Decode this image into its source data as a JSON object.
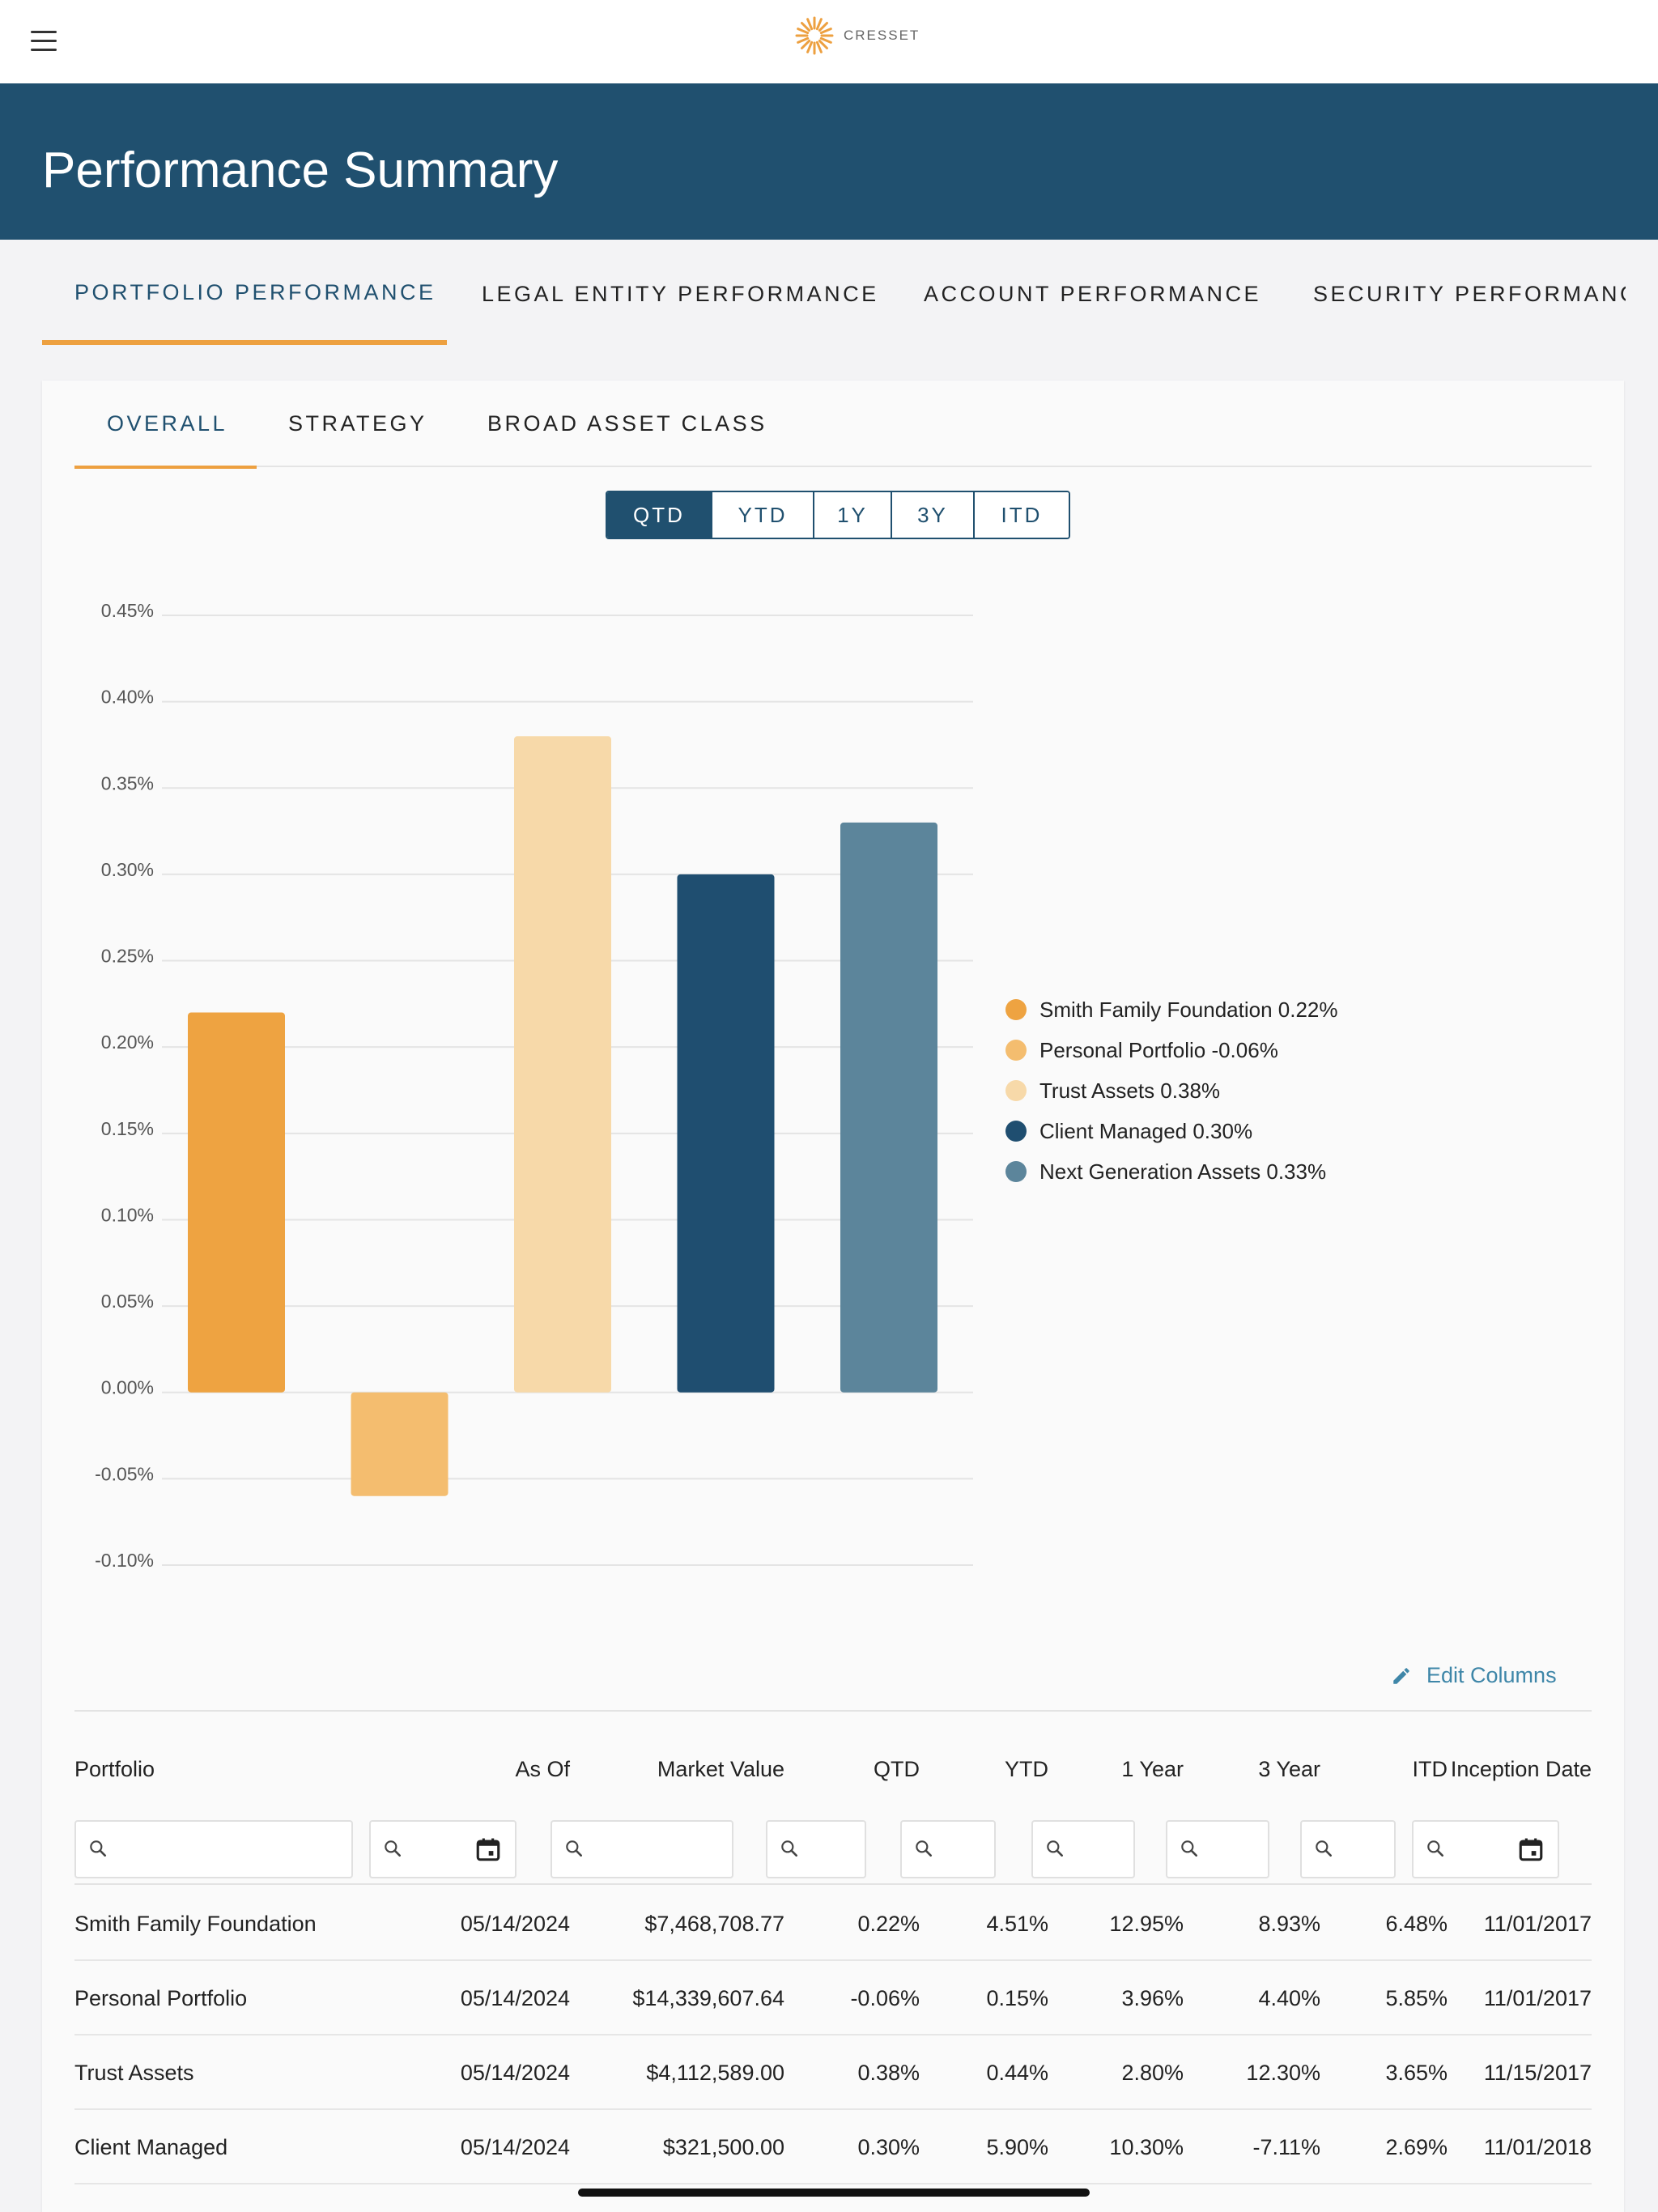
{
  "app": {
    "logo_text": "CRESSET"
  },
  "header": {
    "title": "Performance Summary"
  },
  "main_tabs": [
    {
      "label": "PORTFOLIO PERFORMANCE"
    },
    {
      "label": "LEGAL ENTITY PERFORMANCE"
    },
    {
      "label": "ACCOUNT PERFORMANCE"
    },
    {
      "label": "SECURITY PERFORMANCE"
    }
  ],
  "sub_tabs": [
    {
      "label": "OVERALL"
    },
    {
      "label": "STRATEGY"
    },
    {
      "label": "BROAD ASSET CLASS"
    }
  ],
  "periods": [
    {
      "label": "QTD",
      "active": true
    },
    {
      "label": "YTD"
    },
    {
      "label": "1Y"
    },
    {
      "label": "3Y"
    },
    {
      "label": "ITD"
    }
  ],
  "chart_data": {
    "type": "bar",
    "categories": [
      "Smith Family Foundation",
      "Personal Portfolio",
      "Trust Assets",
      "Client Managed",
      "Next Generation Assets"
    ],
    "values": [
      0.22,
      -0.06,
      0.38,
      0.3,
      0.33
    ],
    "colors": [
      "#eea341",
      "#f4bd6f",
      "#f7d9a9",
      "#1f4e70",
      "#5c859b"
    ],
    "legend": [
      "Smith Family Foundation 0.22%",
      "Personal Portfolio -0.06%",
      "Trust Assets 0.38%",
      "Client Managed 0.30%",
      "Next Generation Assets 0.33%"
    ],
    "yticks": [
      "0.45%",
      "0.40%",
      "0.35%",
      "0.30%",
      "0.25%",
      "0.20%",
      "0.15%",
      "0.10%",
      "0.05%",
      "0.00%",
      "-0.05%",
      "-0.10%"
    ],
    "ylim": [
      -0.1,
      0.45
    ],
    "grid": true,
    "legend_position": "right"
  },
  "edit_columns_label": "Edit Columns",
  "table": {
    "headers": [
      "Portfolio",
      "As Of",
      "Market Value",
      "QTD",
      "YTD",
      "1 Year",
      "3 Year",
      "ITD",
      "Inception Date"
    ],
    "rows": [
      [
        "Smith Family Foundation",
        "05/14/2024",
        "$7,468,708.77",
        "0.22%",
        "4.51%",
        "12.95%",
        "8.93%",
        "6.48%",
        "11/01/2017"
      ],
      [
        "Personal Portfolio",
        "05/14/2024",
        "$14,339,607.64",
        "-0.06%",
        "0.15%",
        "3.96%",
        "4.40%",
        "5.85%",
        "11/01/2017"
      ],
      [
        "Trust Assets",
        "05/14/2024",
        "$4,112,589.00",
        "0.38%",
        "0.44%",
        "2.80%",
        "12.30%",
        "3.65%",
        "11/15/2017"
      ],
      [
        "Client Managed",
        "05/14/2024",
        "$321,500.00",
        "0.30%",
        "5.90%",
        "10.30%",
        "-7.11%",
        "2.69%",
        "11/01/2018"
      ]
    ]
  }
}
